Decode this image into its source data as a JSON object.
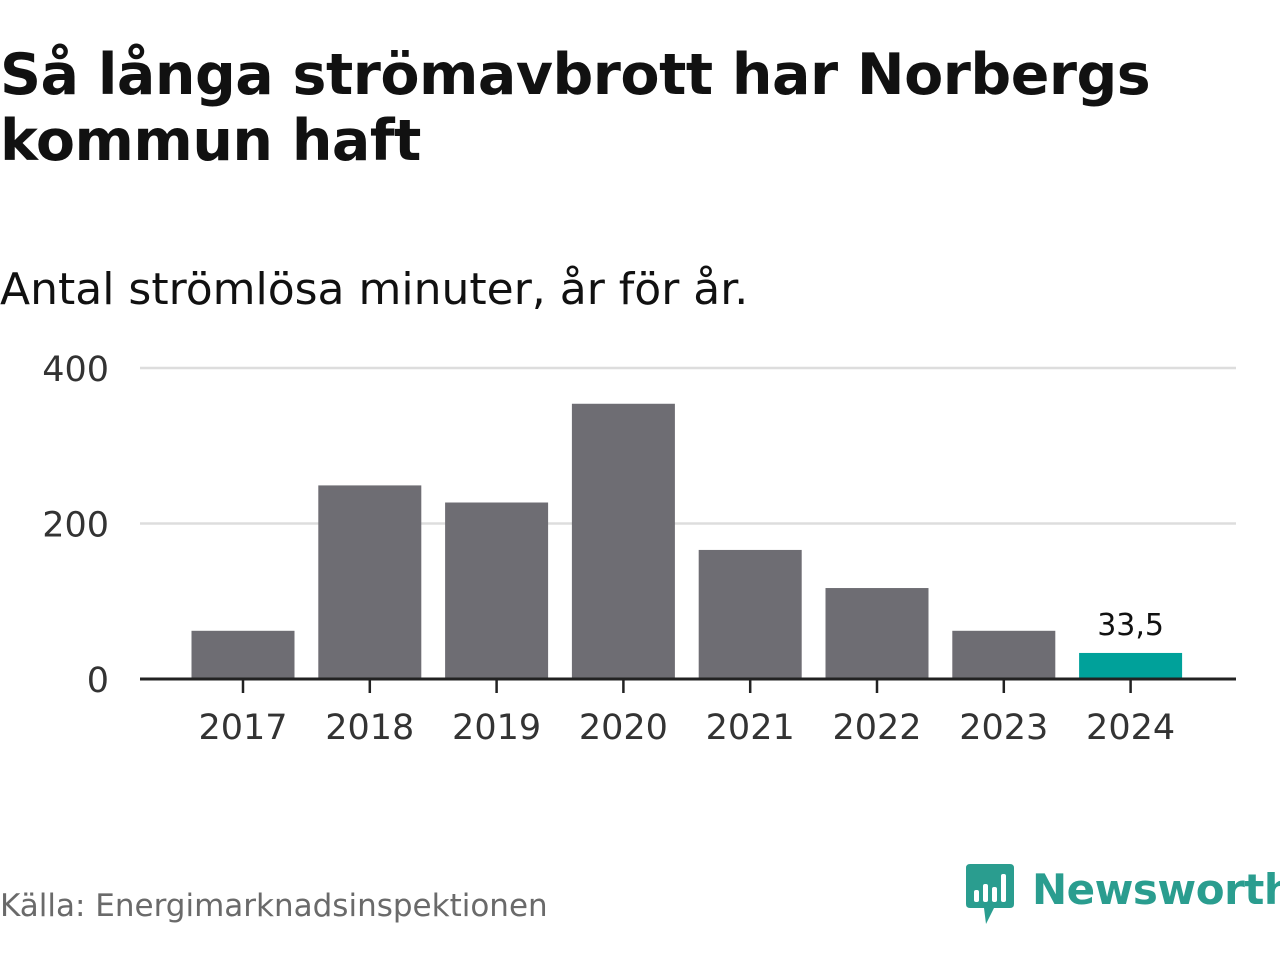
{
  "title": "Så långa strömavbrott har Norbergs kommun haft",
  "subtitle": "Antal strömlösa minuter, år för år.",
  "source": "Källa: Energimarknadsinspektionen",
  "brand": {
    "name": "Newsworthy",
    "icon": "newsworthy-logo-icon",
    "color": "#2a9d8f"
  },
  "colors": {
    "bar": "#6e6d73",
    "highlight": "#00a19a",
    "grid": "#dddddd",
    "axis": "#222222",
    "tick_text": "#333333"
  },
  "chart_data": {
    "type": "bar",
    "title": "Så långa strömavbrott har Norbergs kommun haft",
    "subtitle": "Antal strömlösa minuter, år för år.",
    "xlabel": "",
    "ylabel": "",
    "categories": [
      "2017",
      "2018",
      "2019",
      "2020",
      "2021",
      "2022",
      "2023",
      "2024"
    ],
    "values": [
      62,
      249,
      227,
      354,
      166,
      117,
      62,
      33.5
    ],
    "highlight_index": 7,
    "data_labels": [
      {
        "index": 7,
        "text": "33,5"
      }
    ],
    "ylim": [
      0,
      400
    ],
    "yticks": [
      0,
      200,
      400
    ],
    "ytick_labels": [
      "0",
      "200",
      "400"
    ],
    "grid": true
  }
}
